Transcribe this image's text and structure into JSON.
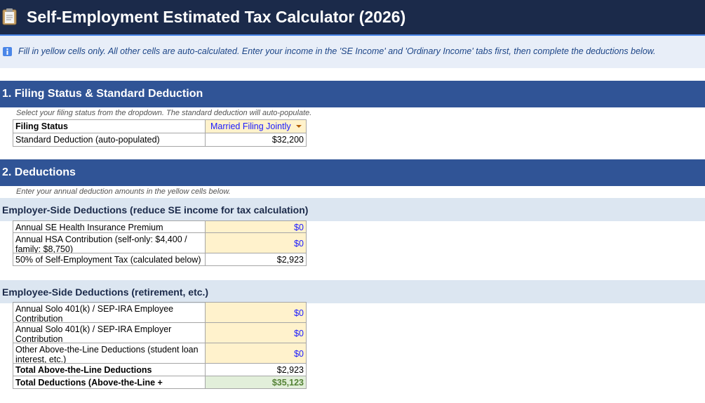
{
  "header": {
    "title": "Self-Employment Estimated Tax Calculator (2026)",
    "icon": "clipboard-icon"
  },
  "info": {
    "icon": "info-icon",
    "text": "Fill in yellow cells only. All other cells are auto-calculated. Enter your income in the 'SE Income' and 'Ordinary Income' tabs first, then complete the deductions below."
  },
  "section1": {
    "title": "1. Filing Status & Standard Deduction",
    "hint": "Select your filing status from the dropdown. The standard deduction will auto-populate.",
    "rows": [
      {
        "label": "Filing Status",
        "value": "Married Filing Jointly"
      },
      {
        "label": "Standard Deduction (auto-populated)",
        "value": "$32,200"
      }
    ]
  },
  "section2": {
    "title": "2. Deductions",
    "hint": "Enter your annual deduction amounts in the yellow cells below.",
    "employer": {
      "title": "Employer-Side Deductions (reduce SE income for tax calculation)",
      "rows": [
        {
          "label": "Annual SE Health Insurance Premium",
          "value": "$0"
        },
        {
          "label": "Annual HSA Contribution (self-only: $4,400 / family: $8,750)",
          "value": "$0"
        },
        {
          "label": "50% of Self-Employment Tax (calculated below)",
          "value": "$2,923"
        }
      ]
    },
    "employee": {
      "title": "Employee-Side Deductions (retirement, etc.)",
      "rows": [
        {
          "label": "Annual Solo 401(k) / SEP-IRA Employee Contribution",
          "value": "$0"
        },
        {
          "label": "Annual Solo 401(k) / SEP-IRA Employer Contribution",
          "value": "$0"
        },
        {
          "label": "Other Above-the-Line Deductions (student loan interest, etc.)",
          "value": "$0"
        },
        {
          "label": "Total Above-the-Line Deductions",
          "value": "$2,923"
        },
        {
          "label": "Total Deductions (Above-the-Line +",
          "value": "$35,123"
        }
      ]
    }
  },
  "colors": {
    "title_bg": "#1b2a4a",
    "section_bg": "#305496",
    "sub_bg": "#dce6f1",
    "input_bg": "#fff2cc",
    "total_bg": "#e2efda"
  }
}
